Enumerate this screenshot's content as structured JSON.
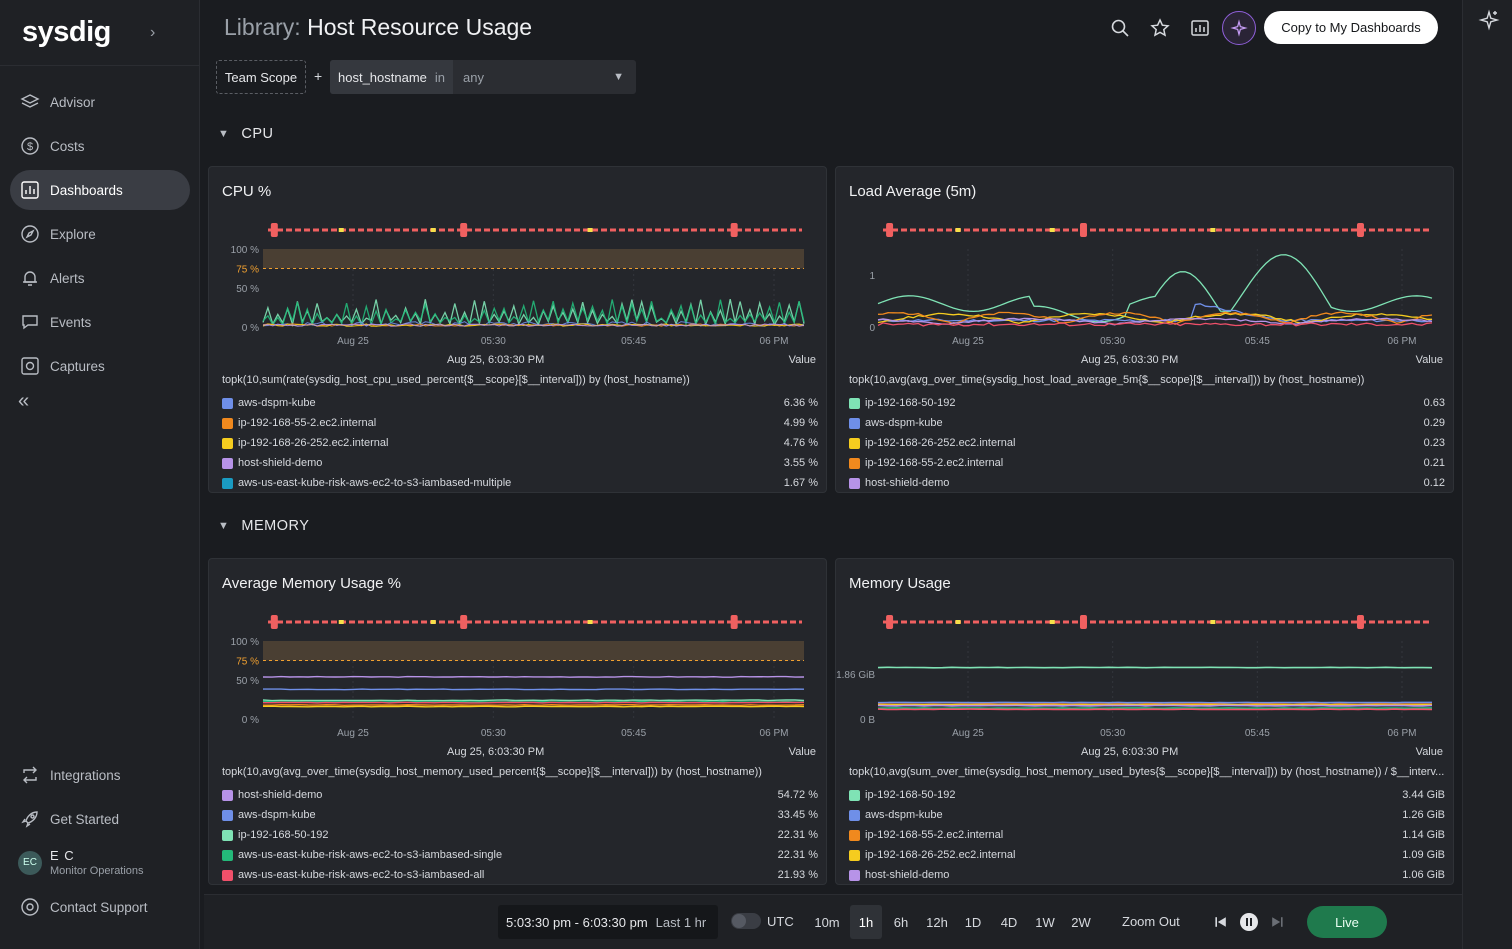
{
  "app": {
    "logo": "sysdig"
  },
  "sidebar": {
    "items": [
      {
        "label": "Advisor",
        "icon": "layers-icon"
      },
      {
        "label": "Costs",
        "icon": "dollar-icon"
      },
      {
        "label": "Dashboards",
        "icon": "dashboard-icon",
        "active": true
      },
      {
        "label": "Explore",
        "icon": "compass-icon"
      },
      {
        "label": "Alerts",
        "icon": "bell-icon"
      },
      {
        "label": "Events",
        "icon": "events-icon"
      },
      {
        "label": "Captures",
        "icon": "capture-icon"
      }
    ],
    "bottom_items": [
      {
        "label": "Integrations",
        "icon": "integrations-icon"
      },
      {
        "label": "Get Started",
        "icon": "rocket-icon"
      }
    ],
    "user": {
      "initials": "EC",
      "name": "E C",
      "org": "Monitor Operations"
    },
    "support": {
      "label": "Contact Support",
      "icon": "support-icon"
    }
  },
  "header": {
    "title_prefix": "Library:",
    "title": "Host Resource Usage",
    "copy_label": "Copy to My Dashboards"
  },
  "scope": {
    "team": "Team Scope",
    "plus": "+",
    "key": "host_hostname",
    "operator": "in",
    "value": "any"
  },
  "sections": [
    {
      "label": "CPU"
    },
    {
      "label": "MEMORY"
    }
  ],
  "axis_times": [
    "Aug 25",
    "05:30",
    "05:45",
    "06 PM"
  ],
  "timestamp": "Aug 25, 6:03:30 PM",
  "value_header": "Value",
  "panels": [
    {
      "title": "CPU %",
      "y_ticks": [
        "100 %",
        "75 %",
        "50 %",
        "0 %"
      ],
      "query": "topk(10,sum(rate(sysdig_host_cpu_used_percent{$__scope}[$__interval])) by (host_hostname))",
      "legend": [
        {
          "name": "aws-dspm-kube",
          "value": "6.36 %",
          "color": "#6f8fe8"
        },
        {
          "name": "ip-192-168-55-2.ec2.internal",
          "value": "4.99 %",
          "color": "#f0891e"
        },
        {
          "name": "ip-192-168-26-252.ec2.internal",
          "value": "4.76 %",
          "color": "#f5cc1f"
        },
        {
          "name": "host-shield-demo",
          "value": "3.55 %",
          "color": "#b793e8"
        },
        {
          "name": "aws-us-east-kube-risk-aws-ec2-to-s3-iambased-multiple",
          "value": "1.67 %",
          "color": "#1a9bc2"
        }
      ]
    },
    {
      "title": "Load Average (5m)",
      "y_ticks": [
        "1",
        "0"
      ],
      "query": "topk(10,avg(avg_over_time(sysdig_host_load_average_5m{$__scope}[$__interval])) by (host_hostname))",
      "legend": [
        {
          "name": "ip-192-168-50-192",
          "value": "0.63",
          "color": "#7fe3b5"
        },
        {
          "name": "aws-dspm-kube",
          "value": "0.29",
          "color": "#6f8fe8"
        },
        {
          "name": "ip-192-168-26-252.ec2.internal",
          "value": "0.23",
          "color": "#f5cc1f"
        },
        {
          "name": "ip-192-168-55-2.ec2.internal",
          "value": "0.21",
          "color": "#f0891e"
        },
        {
          "name": "host-shield-demo",
          "value": "0.12",
          "color": "#b793e8"
        }
      ]
    },
    {
      "title": "Average Memory Usage %",
      "y_ticks": [
        "100 %",
        "75 %",
        "50 %",
        "0 %"
      ],
      "query": "topk(10,avg(avg_over_time(sysdig_host_memory_used_percent{$__scope}[$__interval])) by (host_hostname))",
      "legend": [
        {
          "name": "host-shield-demo",
          "value": "54.72 %",
          "color": "#b793e8"
        },
        {
          "name": "aws-dspm-kube",
          "value": "33.45 %",
          "color": "#6f8fe8"
        },
        {
          "name": "ip-192-168-50-192",
          "value": "22.31 %",
          "color": "#7fe3b5"
        },
        {
          "name": "aws-us-east-kube-risk-aws-ec2-to-s3-iambased-single",
          "value": "22.31 %",
          "color": "#24b97a"
        },
        {
          "name": "aws-us-east-kube-risk-aws-ec2-to-s3-iambased-all",
          "value": "21.93 %",
          "color": "#f0506a"
        }
      ]
    },
    {
      "title": "Memory Usage",
      "y_ticks": [
        "1.86 GiB",
        "0 B"
      ],
      "query": "topk(10,avg(sum_over_time(sysdig_host_memory_used_bytes{$__scope}[$__interval])) by (host_hostname)) / $__interv...",
      "legend": [
        {
          "name": "ip-192-168-50-192",
          "value": "3.44 GiB",
          "color": "#7fe3b5"
        },
        {
          "name": "aws-dspm-kube",
          "value": "1.26 GiB",
          "color": "#6f8fe8"
        },
        {
          "name": "ip-192-168-55-2.ec2.internal",
          "value": "1.14 GiB",
          "color": "#f0891e"
        },
        {
          "name": "ip-192-168-26-252.ec2.internal",
          "value": "1.09 GiB",
          "color": "#f5cc1f"
        },
        {
          "name": "host-shield-demo",
          "value": "1.06 GiB",
          "color": "#b793e8"
        }
      ]
    }
  ],
  "footer": {
    "range": "5:03:30 pm - 6:03:30 pm",
    "range_last": "Last 1 hr",
    "utc": "UTC",
    "presets": [
      "10m",
      "1h",
      "6h",
      "12h",
      "1D",
      "4D",
      "1W",
      "2W"
    ],
    "active_preset": "1h",
    "zoom_out": "Zoom Out",
    "live": "Live"
  }
}
